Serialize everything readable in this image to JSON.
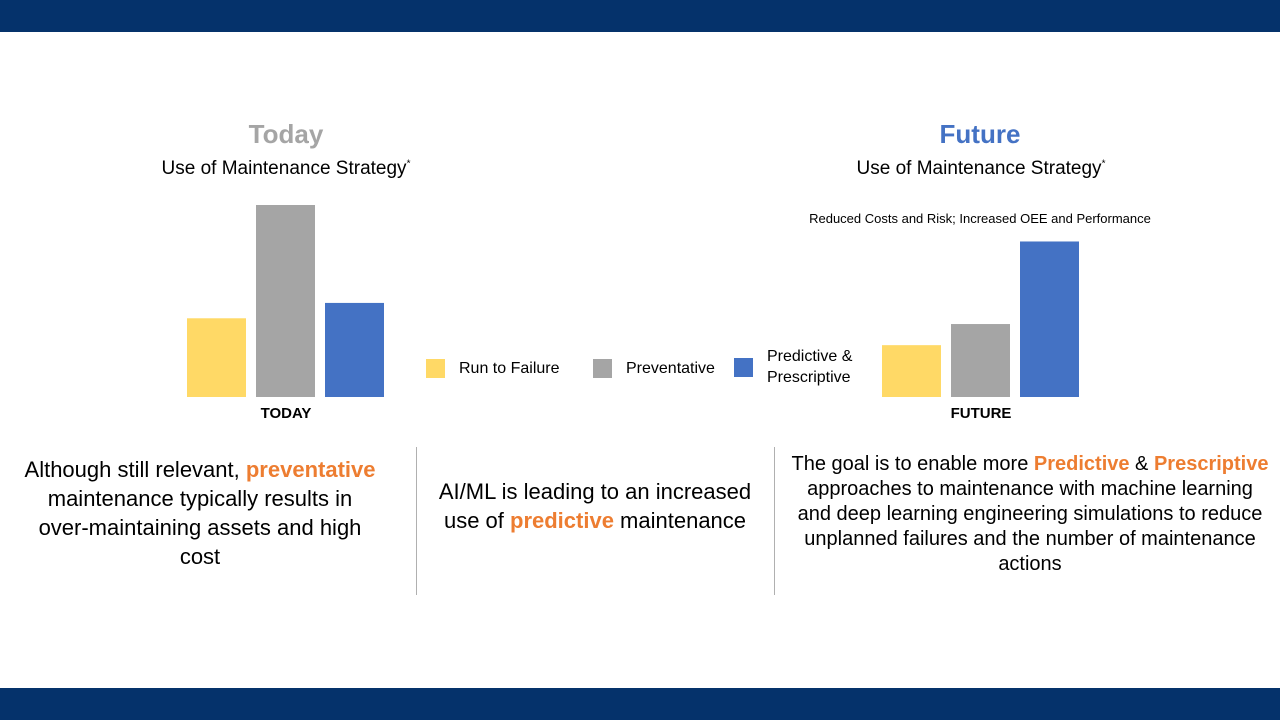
{
  "colors": {
    "band": "#05326b",
    "run_to_failure": "#ffd966",
    "preventative": "#a5a5a5",
    "predictive": "#4472c4",
    "highlight": "#ed7d31",
    "today_heading": "#a5a5a5",
    "future_heading": "#4472c4"
  },
  "today": {
    "heading": "Today",
    "subtitle": "Use of Maintenance Strategy",
    "footnote_mark": "*"
  },
  "future": {
    "heading": "Future",
    "subtitle": "Use of Maintenance Strategy",
    "footnote_mark": "*",
    "annotation": "Reduced Costs and Risk; Increased OEE and Performance"
  },
  "legend": [
    {
      "label": "Run to Failure",
      "color": "#ffd966"
    },
    {
      "label": "Preventative",
      "color": "#a5a5a5"
    },
    {
      "label": "Predictive &",
      "label2": "Prescriptive",
      "color": "#4472c4"
    }
  ],
  "chart_data": [
    {
      "type": "bar",
      "categories": [
        "Run to Failure",
        "Preventative",
        "Predictive & Prescriptive"
      ],
      "values": [
        41,
        100,
        49
      ],
      "xlabel": "TODAY",
      "ylim": [
        0,
        100
      ],
      "colors": [
        "#ffd966",
        "#a5a5a5",
        "#4472c4"
      ],
      "grid": false,
      "legend": "center"
    },
    {
      "type": "bar",
      "categories": [
        "Run to Failure",
        "Preventative",
        "Predictive & Prescriptive"
      ],
      "values": [
        27,
        38,
        81
      ],
      "xlabel": "FUTURE",
      "ylim": [
        0,
        100
      ],
      "colors": [
        "#ffd966",
        "#a5a5a5",
        "#4472c4"
      ],
      "grid": false,
      "legend": "center"
    }
  ],
  "captions": {
    "left": {
      "pre": "Although still relevant, ",
      "hl": "preventative",
      "post": " maintenance typically results in over-maintaining assets and high cost"
    },
    "middle": {
      "pre": "AI/ML is leading to an increased use of ",
      "hl": "predictive",
      "post": " maintenance"
    },
    "right": {
      "pre": "The goal is to enable more ",
      "hl1": "Predictive",
      "mid": " & ",
      "hl2": "Prescriptive",
      "post": " approaches to maintenance with machine learning and deep learning engineering simulations to reduce unplanned failures and the number of maintenance actions"
    }
  }
}
